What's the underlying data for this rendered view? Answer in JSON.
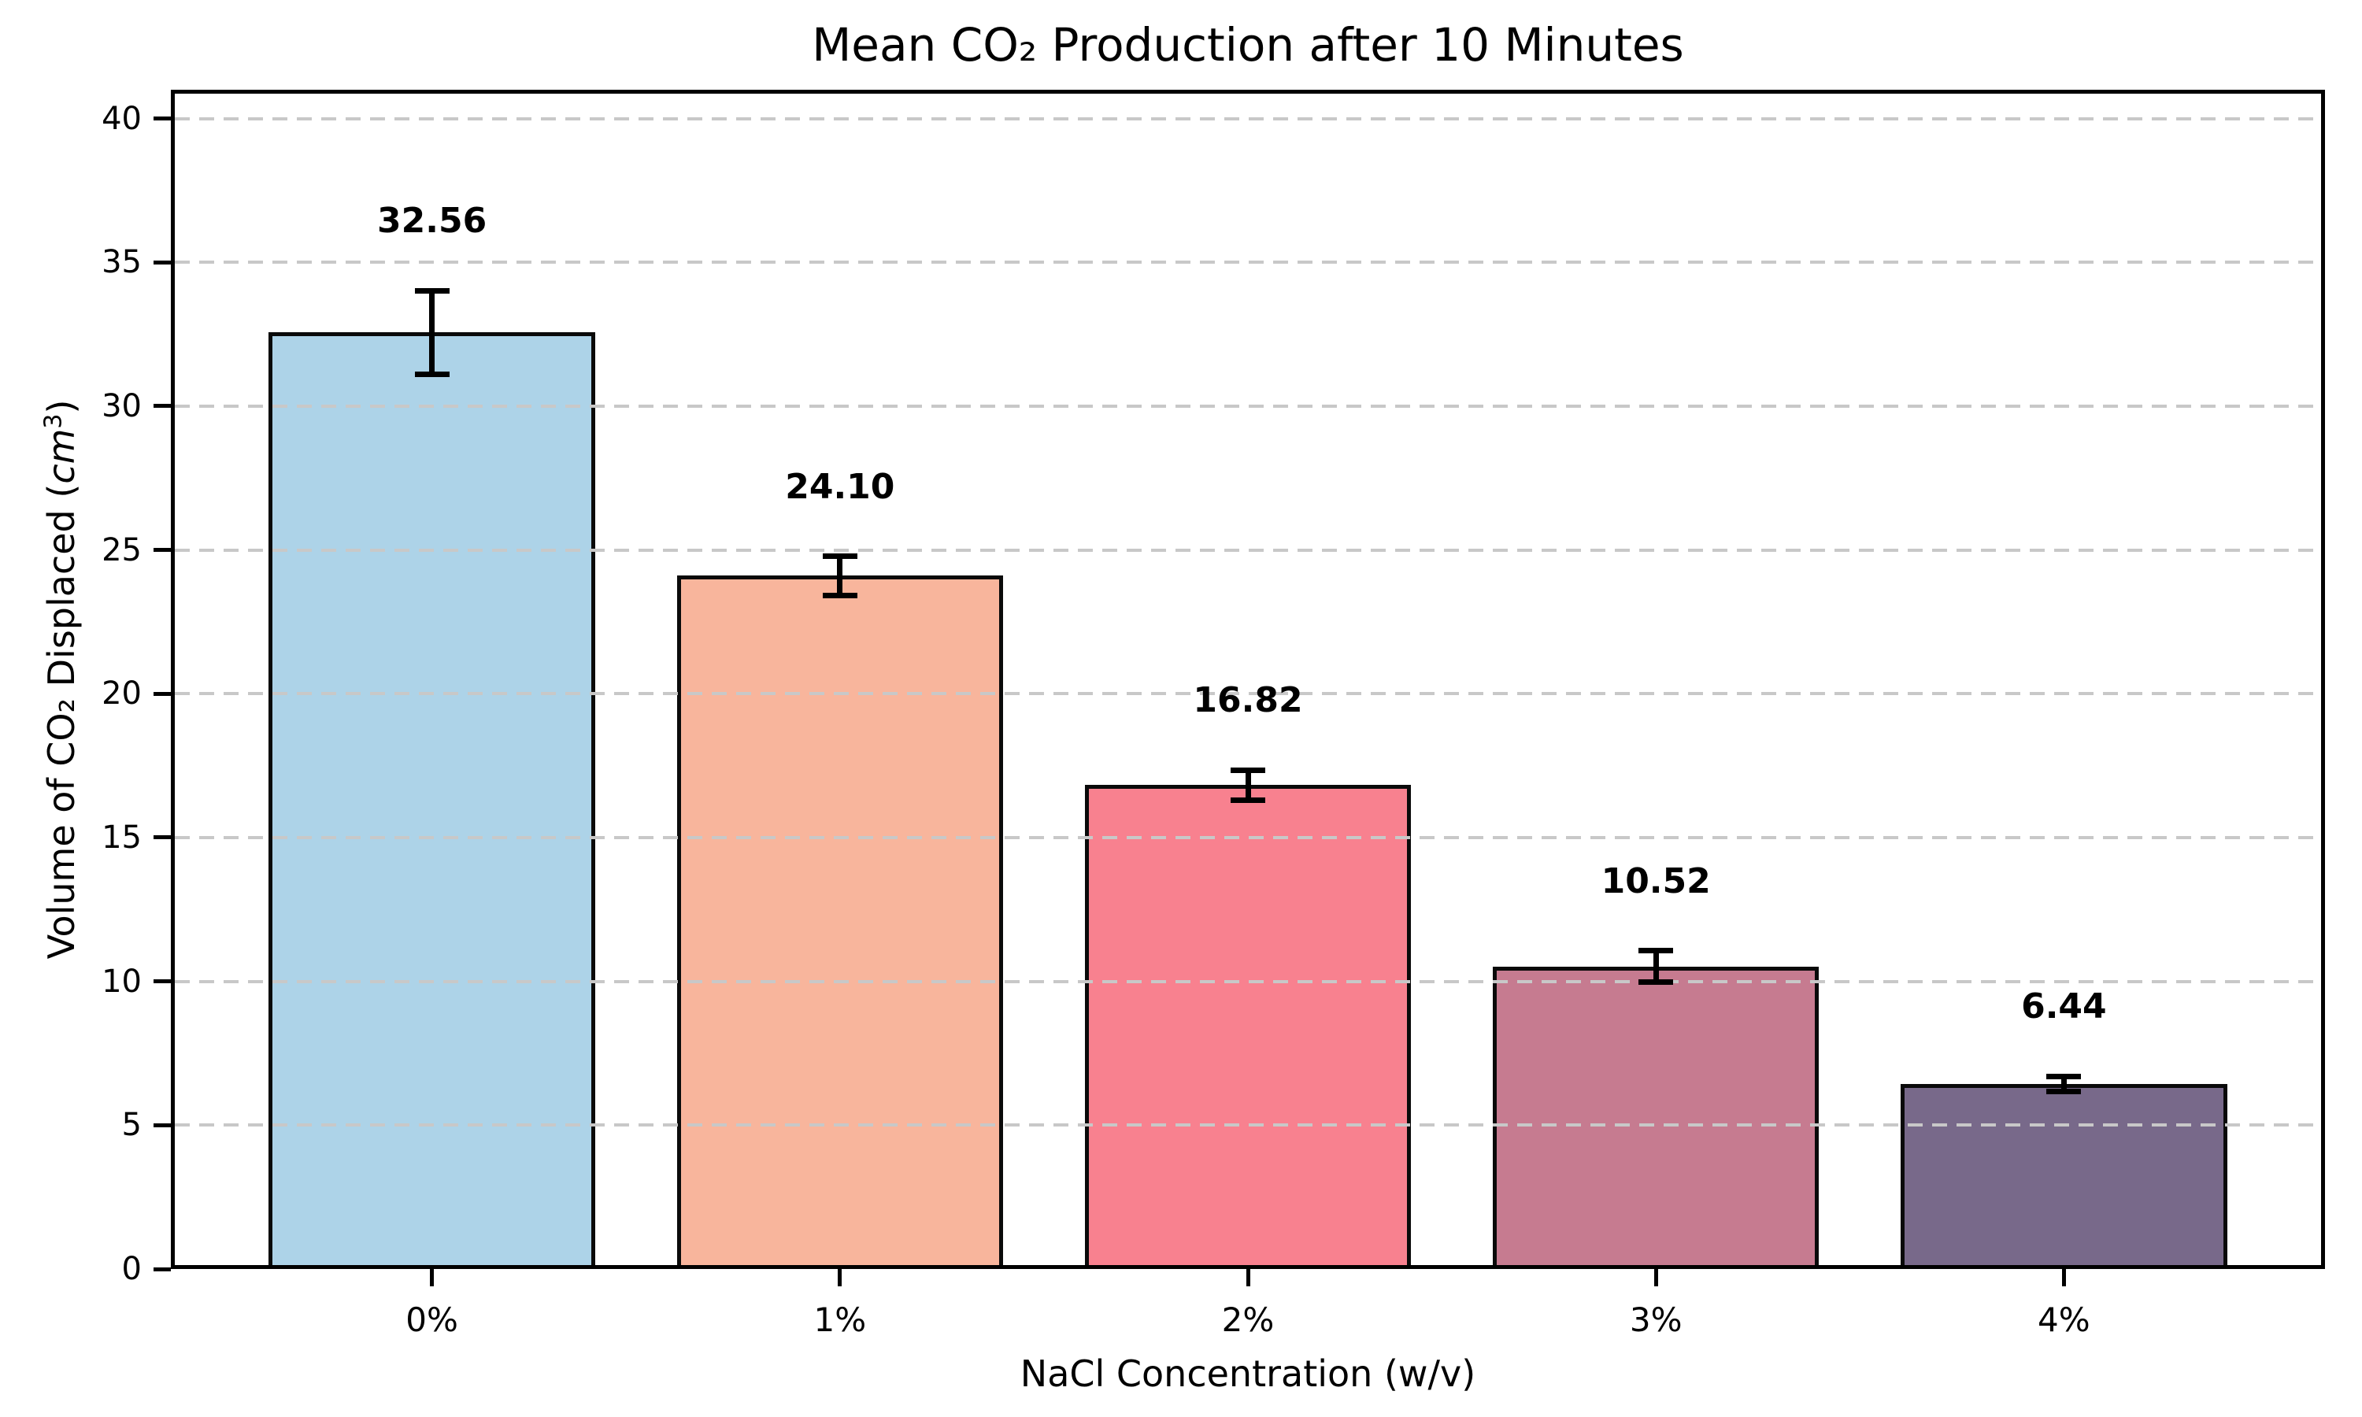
{
  "figure": {
    "title": "Mean CO₂ Production after 10 Minutes",
    "xlabel": "NaCl Concentration (w/v)",
    "ylabel": "Volume of CO₂ Displaced (cm³)",
    "ylabel_parts": {
      "prefix": "Volume of CO₂ Displaced (",
      "italic_unit": "cm",
      "superscript": "3",
      "suffix": ")"
    }
  },
  "chart_data": {
    "type": "bar",
    "title": "Mean CO₂ Production after 10 Minutes",
    "xlabel": "NaCl Concentration (w/v)",
    "ylabel": "Volume of CO₂ Displaced (cm³)",
    "categories": [
      "0%",
      "1%",
      "2%",
      "3%",
      "4%"
    ],
    "values": [
      32.56,
      24.1,
      16.82,
      10.52,
      6.44
    ],
    "errors": [
      1.45,
      0.68,
      0.52,
      0.54,
      0.26
    ],
    "bar_value_labels": [
      "32.56",
      "24.10",
      "16.82",
      "10.52",
      "6.44"
    ],
    "bar_colors": [
      "#ADD3E8",
      "#F8B59C",
      "#F8818F",
      "#C67B90",
      "#78698A"
    ],
    "bar_edge_color": "#0a0a0a",
    "error_bar_color": "#000000",
    "grid_color": "#c8c8c8",
    "grid_style": "dashed-horizontal",
    "grid_above_bars": true,
    "legend": "none",
    "yticks": [
      0,
      5,
      10,
      15,
      20,
      25,
      30,
      35,
      40
    ],
    "ytick_labels": [
      "0",
      "5",
      "10",
      "15",
      "20",
      "25",
      "30",
      "35",
      "40"
    ],
    "ylim": [
      0,
      41
    ],
    "xlim": [
      -0.64,
      4.64
    ],
    "bar_width": 0.8
  }
}
